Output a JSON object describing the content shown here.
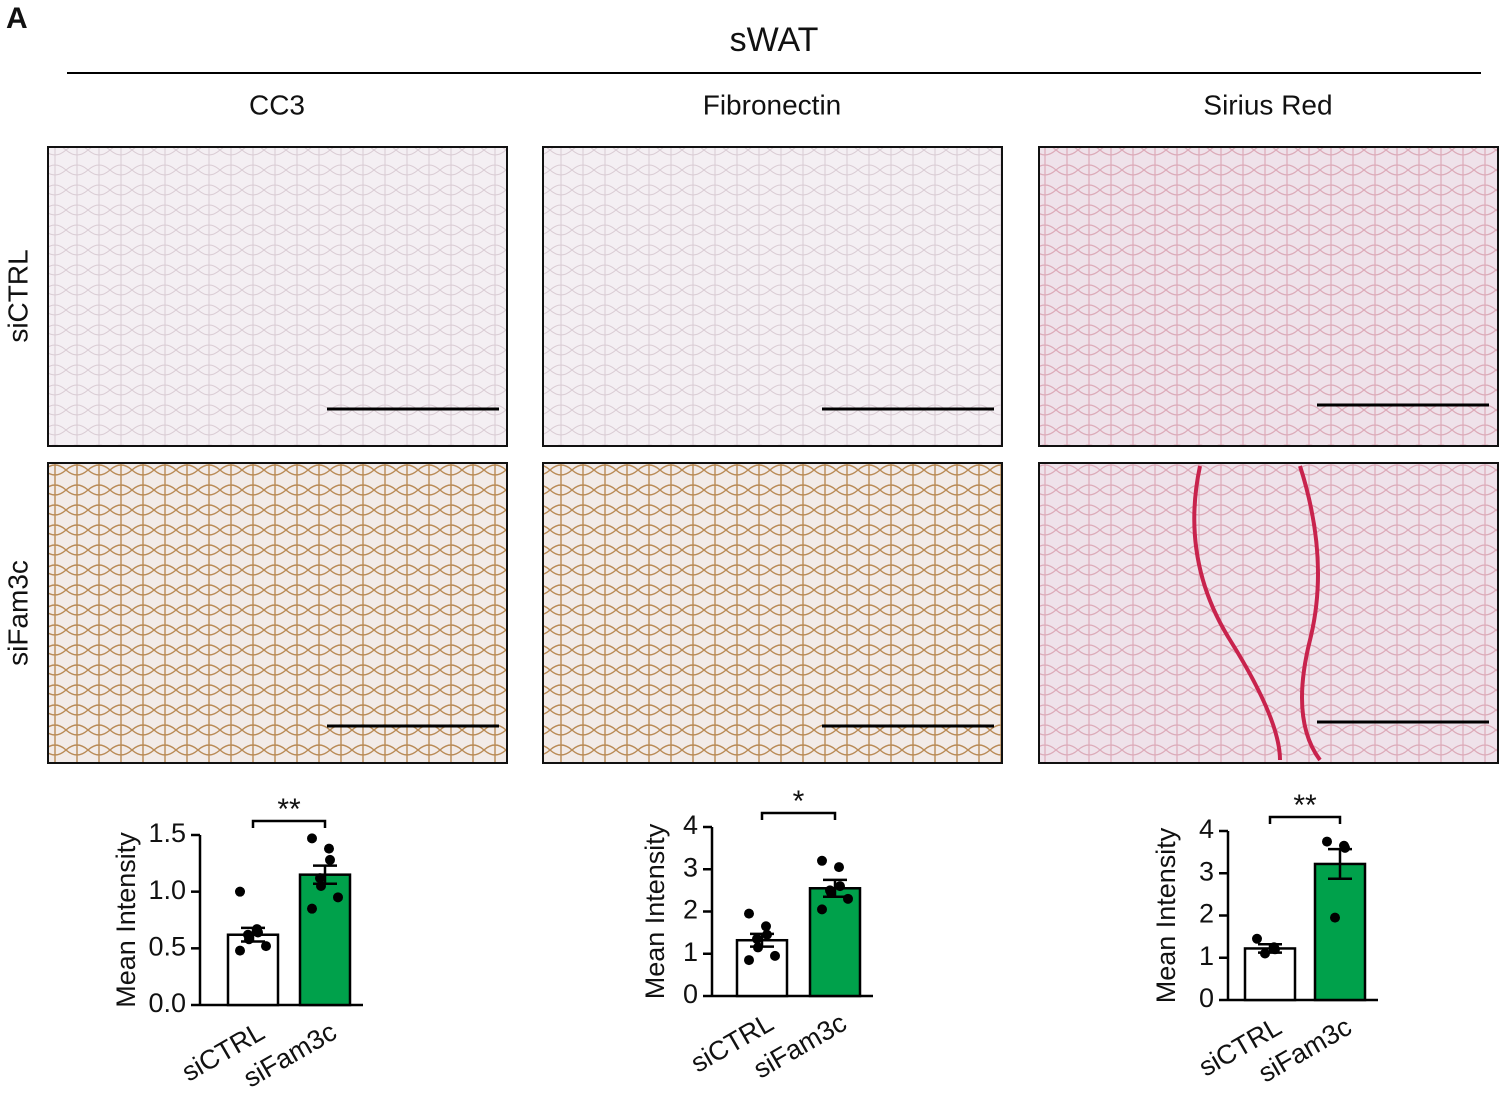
{
  "panel_label": "A",
  "title": "sWAT",
  "columns": [
    "CC3",
    "Fibronectin",
    "Sirius Red"
  ],
  "rows": [
    "siCTRL",
    "siFam3c"
  ],
  "chart_data": [
    {
      "type": "bar",
      "ylabel": "Mean Intensity",
      "categories": [
        "siCTRL",
        "siFam3c"
      ],
      "values": [
        0.62,
        1.15
      ],
      "errors": [
        0.06,
        0.08
      ],
      "colors": [
        "#ffffff",
        "#00a14b"
      ],
      "points": [
        [
          1.0,
          0.67,
          0.64,
          0.62,
          0.58,
          0.52,
          0.48
        ],
        [
          1.47,
          1.38,
          1.28,
          1.12,
          1.05,
          0.95,
          0.85
        ]
      ],
      "significance": "**",
      "ylim": [
        0,
        1.5
      ],
      "yticks": [
        {
          "value": 0,
          "label": "0.0"
        },
        {
          "value": 0.5,
          "label": "0.5"
        },
        {
          "value": 1,
          "label": "1.0"
        },
        {
          "value": 1.5,
          "label": "1.5"
        }
      ]
    },
    {
      "type": "bar",
      "ylabel": "Mean Intensity",
      "categories": [
        "siCTRL",
        "siFam3c"
      ],
      "values": [
        1.32,
        2.55
      ],
      "errors": [
        0.15,
        0.2
      ],
      "colors": [
        "#ffffff",
        "#00a14b"
      ],
      "points": [
        [
          1.95,
          1.65,
          1.45,
          1.35,
          1.15,
          0.95,
          0.85
        ],
        [
          3.2,
          3.05,
          2.6,
          2.5,
          2.45,
          2.3,
          2.05
        ]
      ],
      "significance": "*",
      "ylim": [
        0,
        4
      ],
      "yticks": [
        0,
        1,
        2,
        3,
        4
      ]
    },
    {
      "type": "bar",
      "ylabel": "Mean Intensity",
      "categories": [
        "siCTRL",
        "siFam3c"
      ],
      "values": [
        1.22,
        3.22
      ],
      "errors": [
        0.1,
        0.35
      ],
      "colors": [
        "#ffffff",
        "#00a14b"
      ],
      "points": [
        [
          1.45,
          1.25,
          1.2,
          1.1
        ],
        [
          3.75,
          3.65,
          3.6,
          1.95
        ]
      ],
      "significance": "**",
      "ylim": [
        0,
        4
      ],
      "yticks": [
        0,
        1,
        2,
        3,
        4
      ]
    }
  ]
}
